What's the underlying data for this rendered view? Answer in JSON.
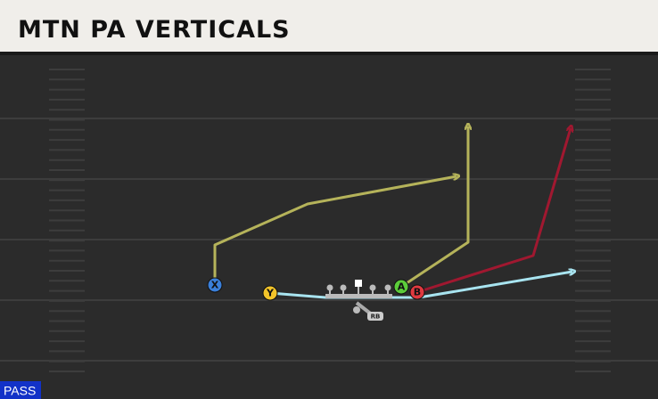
{
  "header": {
    "title": "MTN PA VERTICALS"
  },
  "players": [
    {
      "label": "X"
    },
    {
      "label": "Y"
    },
    {
      "label": "A"
    },
    {
      "label": "B"
    },
    {
      "label": "RB"
    }
  ],
  "play_type": "PASS"
}
